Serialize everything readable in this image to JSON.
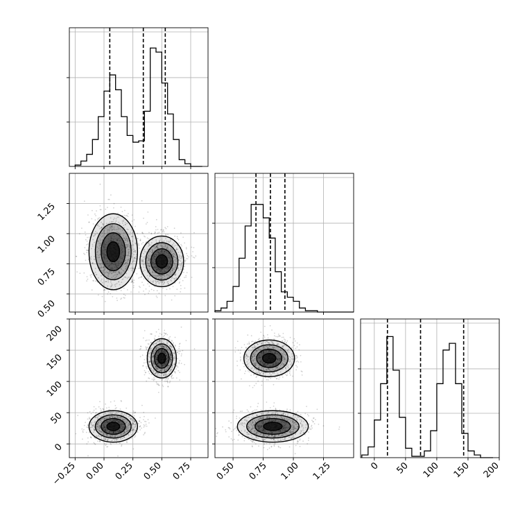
{
  "chart_data": [
    {
      "type": "histogram",
      "panel": "x0-marginal",
      "xlim": [
        -0.3,
        0.9
      ],
      "bins": [
        -0.25,
        -0.2,
        -0.15,
        -0.1,
        -0.05,
        0.0,
        0.05,
        0.1,
        0.15,
        0.2,
        0.25,
        0.3,
        0.35,
        0.4,
        0.45,
        0.5,
        0.55,
        0.6,
        0.65,
        0.7,
        0.75,
        0.8,
        0.85
      ],
      "counts": [
        0.01,
        0.04,
        0.09,
        0.2,
        0.37,
        0.56,
        0.68,
        0.57,
        0.37,
        0.23,
        0.18,
        0.19,
        0.41,
        0.88,
        0.85,
        0.62,
        0.39,
        0.2,
        0.05,
        0.02,
        0.0,
        0.0
      ],
      "quantiles": [
        0.05,
        0.34,
        0.53
      ]
    },
    {
      "type": "histogram",
      "panel": "x1-marginal",
      "xlim": [
        0.35,
        1.5
      ],
      "bins": [
        0.35,
        0.4,
        0.45,
        0.5,
        0.55,
        0.6,
        0.65,
        0.7,
        0.75,
        0.8,
        0.85,
        0.9,
        0.95,
        1.0,
        1.05,
        1.1,
        1.15,
        1.2,
        1.25,
        1.3,
        1.35,
        1.4,
        1.45,
        1.5
      ],
      "counts": [
        0.01,
        0.03,
        0.08,
        0.19,
        0.4,
        0.64,
        0.8,
        0.8,
        0.7,
        0.55,
        0.3,
        0.15,
        0.11,
        0.08,
        0.03,
        0.01,
        0.01,
        0.0,
        0.0,
        0.0,
        0.0,
        0.0,
        0.0
      ],
      "quantiles": [
        0.69,
        0.81,
        0.93
      ]
    },
    {
      "type": "histogram",
      "panel": "x2-marginal",
      "xlim": [
        -22,
        200
      ],
      "bins": [
        -20,
        -10,
        0,
        10,
        20,
        30,
        40,
        50,
        60,
        70,
        80,
        90,
        100,
        110,
        120,
        130,
        140,
        150,
        160,
        170,
        180,
        190
      ],
      "counts": [
        0.02,
        0.08,
        0.28,
        0.55,
        0.9,
        0.65,
        0.3,
        0.07,
        0.01,
        0.01,
        0.05,
        0.2,
        0.55,
        0.8,
        0.85,
        0.55,
        0.18,
        0.05,
        0.02,
        0.0,
        0.0
      ],
      "quantiles": [
        21,
        74,
        143
      ]
    },
    {
      "type": "scatter-density",
      "panel": "x0-vs-x1",
      "xlim": [
        -0.3,
        0.9
      ],
      "ylim": [
        0.35,
        1.5
      ],
      "clusters": [
        {
          "x": 0.08,
          "y": 0.85,
          "sx": 0.1,
          "sy": 0.15
        },
        {
          "x": 0.5,
          "y": 0.77,
          "sx": 0.09,
          "sy": 0.1
        }
      ]
    },
    {
      "type": "scatter-density",
      "panel": "x0-vs-x2",
      "xlim": [
        -0.3,
        0.9
      ],
      "ylim": [
        -22,
        200
      ],
      "clusters": [
        {
          "x": 0.08,
          "y": 28,
          "sx": 0.1,
          "sy": 12
        },
        {
          "x": 0.5,
          "y": 137,
          "sx": 0.06,
          "sy": 15
        }
      ]
    },
    {
      "type": "scatter-density",
      "panel": "x1-vs-x2",
      "xlim": [
        0.35,
        1.5
      ],
      "ylim": [
        -22,
        200
      ],
      "clusters": [
        {
          "x": 0.8,
          "y": 137,
          "sx": 0.1,
          "sy": 14
        },
        {
          "x": 0.83,
          "y": 28,
          "sx": 0.14,
          "sy": 12
        }
      ]
    }
  ],
  "tick_labels": {
    "row1_y": [
      "0.50",
      "0.75",
      "1.00",
      "1.25"
    ],
    "row2_y": [
      "0",
      "50",
      "100",
      "150",
      "200"
    ],
    "col0_x": [
      "−0.25",
      "0.00",
      "0.25",
      "0.50",
      "0.75"
    ],
    "col1_x": [
      "0.50",
      "0.75",
      "1.00",
      "1.25"
    ],
    "col2_x": [
      "0",
      "50",
      "100",
      "150",
      "200"
    ]
  },
  "colors": {
    "line": "#000000",
    "grid": "#b0b0b0",
    "quantile": "#000000"
  }
}
